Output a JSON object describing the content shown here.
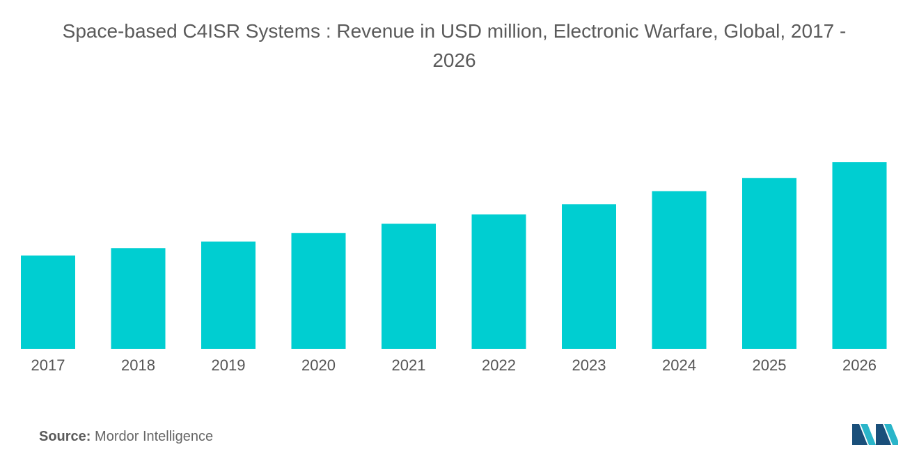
{
  "chart_data": {
    "type": "bar",
    "title_line1": "Space-based C4ISR Systems : Revenue in USD million, Electronic Warfare, Global, 2017 -",
    "title_line2": "2026",
    "categories": [
      "2017",
      "2018",
      "2019",
      "2020",
      "2021",
      "2022",
      "2023",
      "2024",
      "2025",
      "2026"
    ],
    "values": [
      1.0,
      1.08,
      1.15,
      1.24,
      1.34,
      1.44,
      1.55,
      1.69,
      1.83,
      2.0
    ],
    "xlabel": "",
    "ylabel": "",
    "ylim": [
      0,
      2.0
    ],
    "grid": false,
    "color": "#00ced1"
  },
  "source": {
    "label": "Source:",
    "text": "Mordor Intelligence"
  },
  "logo": {
    "name": "mordor-intelligence-logo",
    "color_dark": "#1a4f7a",
    "color_light": "#2ab5c9"
  }
}
